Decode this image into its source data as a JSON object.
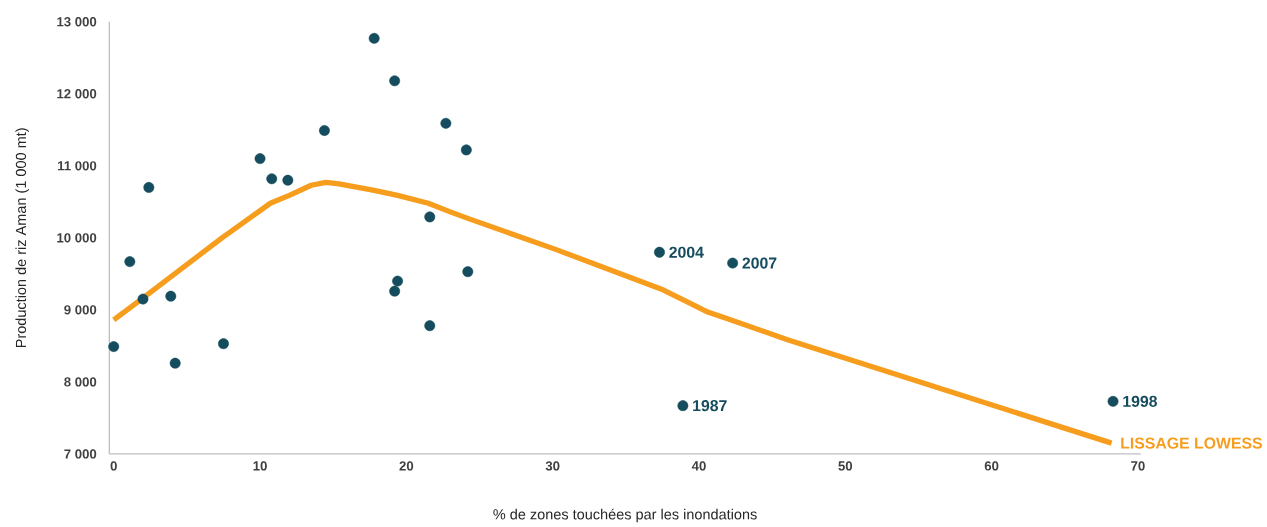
{
  "chart_data": {
    "type": "scatter",
    "xlabel": "% de zones touchées par les inondations",
    "ylabel": "Production de riz Aman (1 000 mt)",
    "xlim": [
      -0.3,
      70.2
    ],
    "ylim": [
      7000,
      13000
    ],
    "xticks": [
      0,
      10,
      20,
      30,
      40,
      50,
      60,
      70
    ],
    "yticks": [
      {
        "value": 7000,
        "label": "7 000"
      },
      {
        "value": 8000,
        "label": "8 000"
      },
      {
        "value": 9000,
        "label": "9 000"
      },
      {
        "value": 10000,
        "label": "10 000"
      },
      {
        "value": 11000,
        "label": "11 000"
      },
      {
        "value": 12000,
        "label": "12 000"
      },
      {
        "value": 13000,
        "label": "13 000"
      }
    ],
    "grid": false,
    "legend": false,
    "series": [
      {
        "marker": "circle",
        "color": "#154c5e",
        "x": [
          0,
          1.1,
          2.0,
          2.4,
          3.9,
          4.2,
          7.5,
          10.0,
          10.8,
          11.9,
          14.4,
          17.8,
          19.2,
          19.4,
          19.2,
          21.6,
          21.6,
          22.7,
          24.1,
          24.2,
          37.3,
          42.3,
          38.9,
          68.3
        ],
        "values": [
          8490,
          9670,
          9150,
          10700,
          9190,
          8260,
          8530,
          11100,
          10820,
          10800,
          11490,
          12770,
          12180,
          9400,
          9260,
          10290,
          8780,
          11590,
          11220,
          9530,
          9800,
          9650,
          7670,
          7730
        ]
      },
      {
        "type": "line",
        "name": "LISSAGE LOWESS",
        "marker": "none",
        "line_style": "solid",
        "color": "#f79d1e",
        "x": [
          0,
          1.9,
          7.4,
          10.7,
          12.0,
          13.5,
          14.5,
          15.4,
          17.8,
          19.4,
          21.5,
          23.0,
          24.2,
          30.2,
          37.4,
          39.2,
          40.6,
          42.2,
          46.0,
          68.2
        ],
        "values": [
          8860,
          9150,
          10000,
          10480,
          10590,
          10730,
          10770,
          10750,
          10660,
          10590,
          10480,
          10360,
          10270,
          9840,
          9290,
          9110,
          8970,
          8860,
          8590,
          7150
        ]
      }
    ],
    "annotations": [
      {
        "text": "2004",
        "x": 37.3,
        "y": 9800
      },
      {
        "text": "2007",
        "x": 42.3,
        "y": 9650
      },
      {
        "text": "1987",
        "x": 38.9,
        "y": 7670
      },
      {
        "text": "1998",
        "x": 68.3,
        "y": 7730
      }
    ]
  }
}
